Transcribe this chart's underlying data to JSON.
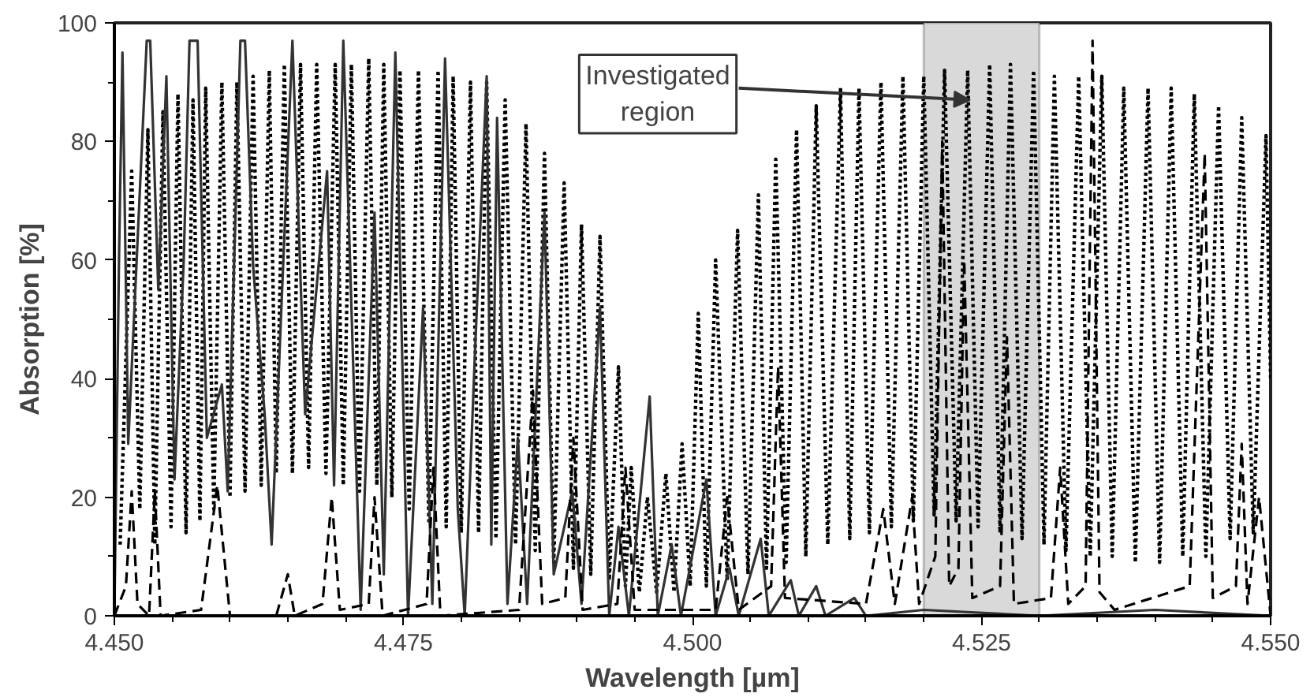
{
  "chart_data": {
    "type": "line",
    "xlabel": "Wavelength [µm]",
    "ylabel": "Absorption [%]",
    "xlim": [
      4.45,
      4.55
    ],
    "ylim": [
      0,
      100
    ],
    "xticks": [
      {
        "value": 4.45,
        "label": "4.450"
      },
      {
        "value": 4.475,
        "label": "4.475"
      },
      {
        "value": 4.5,
        "label": "4.500"
      },
      {
        "value": 4.525,
        "label": "4.525"
      },
      {
        "value": 4.55,
        "label": "4.550"
      }
    ],
    "yticks": [
      0,
      20,
      40,
      60,
      80,
      100
    ],
    "bands": [
      {
        "axis": "x",
        "from": 4.52,
        "to": 4.53,
        "color": "#d9d9d9"
      }
    ],
    "annotations": [
      {
        "text": "Investigated region",
        "x": 4.524,
        "y": 87
      }
    ],
    "series": [
      {
        "color": "#000000",
        "line_style": "dotted",
        "x": [
          4.4505,
          4.4515,
          4.4522,
          4.4529,
          4.4535,
          4.4542,
          4.4549,
          4.4555,
          4.4562,
          4.4568,
          4.4574,
          4.4579,
          4.4586,
          4.4593,
          4.46,
          4.4606,
          4.4613,
          4.462,
          4.4627,
          4.4634,
          4.464,
          4.4647,
          4.4654,
          4.4661,
          4.4668,
          4.4675,
          4.4683,
          4.4691,
          4.4698,
          4.4705,
          4.4712,
          4.472,
          4.4727,
          4.4733,
          4.474,
          4.4747,
          4.4755,
          4.4763,
          4.4772,
          4.478,
          4.4787,
          4.4793,
          4.48,
          4.4808,
          4.4815,
          4.4822,
          4.483,
          4.4838,
          4.4847,
          4.4856,
          4.4864,
          4.4872,
          4.488,
          4.4889,
          4.4897,
          4.4904,
          4.4912,
          4.492,
          4.4928,
          4.4936,
          4.4942,
          4.4947,
          4.4954,
          4.4961,
          4.4969,
          4.4977,
          4.4984,
          4.4991,
          4.4998,
          4.5005,
          4.5012,
          4.502,
          4.503,
          4.5039,
          4.5048,
          4.5057,
          4.5064,
          4.5072,
          4.5081,
          4.509,
          4.5098,
          4.5107,
          4.5117,
          4.5128,
          4.5136,
          4.5144,
          4.5153,
          4.5163,
          4.5172,
          4.5182,
          4.5191,
          4.52,
          4.5209,
          4.5218,
          4.5228,
          4.5238,
          4.5247,
          4.5257,
          4.5266,
          4.5275,
          4.5285,
          4.5295,
          4.5304,
          4.5313,
          4.5323,
          4.5334,
          4.5344,
          4.5354,
          4.5363,
          4.5373,
          4.5383,
          4.5394,
          4.5404,
          4.5414,
          4.5424,
          4.5434,
          4.5444,
          4.5455,
          4.5465,
          4.5475,
          4.5485,
          4.5496,
          4.55
        ],
        "values": [
          12,
          75,
          18,
          82,
          12,
          85,
          15,
          88,
          14,
          87,
          16,
          89,
          18,
          90,
          20,
          90,
          21,
          91,
          22,
          92,
          24,
          93,
          24,
          93,
          25,
          93,
          24,
          93,
          22,
          93,
          21,
          94,
          22,
          93,
          20,
          92,
          18,
          92,
          16,
          92,
          15,
          91,
          14,
          90,
          14,
          90,
          13,
          87,
          12,
          83,
          11,
          78,
          9,
          73,
          8,
          66,
          7,
          64,
          6,
          42,
          5,
          25,
          4,
          20,
          4,
          24,
          4,
          29,
          5,
          51,
          5,
          60,
          6,
          65,
          7,
          71,
          8,
          77,
          9,
          82,
          10,
          86,
          12,
          89,
          13,
          89,
          14,
          90,
          15,
          91,
          16,
          91,
          17,
          92,
          16,
          92,
          15,
          93,
          14,
          93,
          13,
          92,
          12,
          91,
          11,
          91,
          10,
          91,
          10,
          89,
          9,
          89,
          9,
          89,
          10,
          88,
          10,
          86,
          13,
          84,
          14,
          81,
          40
        ]
      },
      {
        "color": "#333333",
        "line_style": "solid",
        "x": [
          4.45,
          4.4504,
          4.4507,
          4.4512,
          4.4528,
          4.4531,
          4.4538,
          4.4545,
          4.4552,
          4.456,
          4.4565,
          4.4572,
          4.458,
          4.4593,
          4.4598,
          4.4609,
          4.4613,
          4.462,
          4.463,
          4.4636,
          4.4654,
          4.4665,
          4.4684,
          4.469,
          4.4698,
          4.4713,
          4.4725,
          4.4733,
          4.4743,
          4.4754,
          4.4767,
          4.4775,
          4.4786,
          4.4797,
          4.4803,
          4.4812,
          4.4822,
          4.4826,
          4.4831,
          4.484,
          4.4849,
          4.4857,
          4.4872,
          4.488,
          4.4896,
          4.4904,
          4.492,
          4.4928,
          4.4936,
          4.4945,
          4.4963,
          4.497,
          4.4982,
          4.499,
          4.5012,
          4.502,
          4.5032,
          4.504,
          4.5059,
          4.5066,
          4.5085,
          4.5092,
          4.5107,
          4.5115,
          4.514,
          4.515,
          4.52,
          4.53,
          4.54,
          4.55
        ],
        "values": [
          0,
          60,
          95,
          29,
          97,
          97,
          55,
          91,
          23,
          60,
          97,
          97,
          30,
          39,
          21,
          97,
          97,
          59,
          34,
          12,
          97,
          34,
          75,
          22,
          97,
          1,
          68,
          7,
          95,
          0,
          52,
          2,
          94,
          18,
          0,
          45,
          91,
          12,
          84,
          2,
          30,
          2,
          68,
          7,
          21,
          2,
          52,
          0,
          15,
          0,
          37,
          0,
          12,
          0,
          23,
          0,
          8,
          0,
          13,
          0,
          6,
          0,
          5,
          0,
          3,
          0,
          1,
          0,
          1,
          0
        ]
      },
      {
        "color": "#000000",
        "line_style": "dashed",
        "x": [
          4.45,
          4.451,
          4.4515,
          4.452,
          4.453,
          4.4535,
          4.454,
          4.4575,
          4.4589,
          4.46,
          4.464,
          4.465,
          4.4656,
          4.468,
          4.4688,
          4.4695,
          4.472,
          4.4725,
          4.4732,
          4.477,
          4.4776,
          4.4782,
          4.485,
          4.4862,
          4.487,
          4.489,
          4.4897,
          4.4905,
          4.4935,
          4.4942,
          4.495,
          4.502,
          4.503,
          4.504,
          4.5068,
          4.5074,
          4.508,
          4.515,
          4.5165,
          4.5175,
          4.519,
          4.5196,
          4.521,
          4.5216,
          4.5222,
          4.523,
          4.5235,
          4.5242,
          4.5266,
          4.5272,
          4.5278,
          4.531,
          4.5318,
          4.5325,
          4.534,
          4.5346,
          4.5352,
          4.5365,
          4.543,
          4.5443,
          4.545,
          4.547,
          4.5475,
          4.548,
          4.549,
          4.55
        ],
        "values": [
          0,
          5,
          21,
          2,
          0,
          21,
          0,
          1,
          22,
          0,
          0,
          7,
          0,
          2,
          20,
          1,
          2,
          20,
          0,
          2,
          25,
          0,
          1,
          38,
          2,
          3,
          30,
          1,
          2,
          25,
          1,
          1,
          20,
          1,
          5,
          42,
          3,
          2,
          18,
          2,
          20,
          2,
          10,
          80,
          5,
          8,
          60,
          3,
          5,
          47,
          2,
          3,
          25,
          2,
          5,
          97,
          4,
          1,
          5,
          78,
          3,
          5,
          29,
          2,
          20,
          0
        ]
      }
    ]
  }
}
